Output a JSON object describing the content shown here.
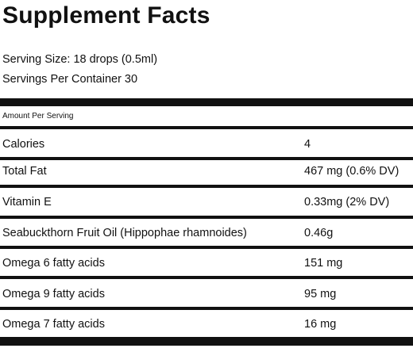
{
  "title": "Supplement Facts",
  "serving_size": "Serving Size: 18 drops (0.5ml)",
  "servings_per_container": "Servings Per Container 30",
  "amount_per_serving": "Amount Per Serving",
  "rows": [
    {
      "label": "Calories",
      "value": "4"
    },
    {
      "label": "Total Fat",
      "value": "467 mg (0.6% DV)"
    },
    {
      "label": "Vitamin E",
      "value": "0.33mg (2% DV)"
    },
    {
      "label": "Seabuckthorn Fruit Oil (Hippophae rhamnoides)",
      "value": "0.46g"
    },
    {
      "label": "Omega 6 fatty acids",
      "value": "151 mg"
    },
    {
      "label": "Omega 9 fatty acids",
      "value": "95 mg"
    },
    {
      "label": "Omega 7 fatty acids",
      "value": "16 mg"
    }
  ]
}
